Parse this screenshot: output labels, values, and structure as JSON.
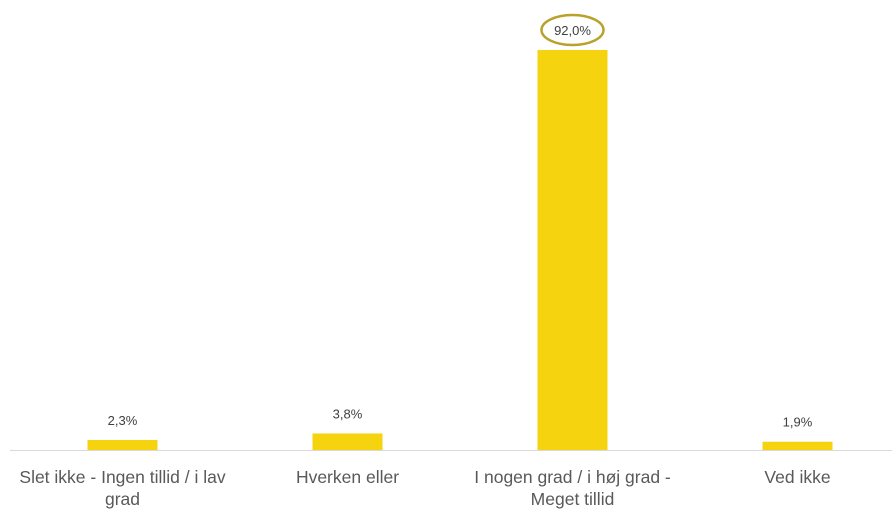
{
  "chart_data": {
    "type": "bar",
    "categories": [
      "Slet ikke - Ingen tillid / i lav grad",
      "Hverken eller",
      "I nogen grad / i høj grad - Meget tillid",
      "Ved ikke"
    ],
    "values": [
      2.3,
      3.8,
      92.0,
      1.9
    ],
    "value_labels": [
      "2,3%",
      "3,8%",
      "92,0%",
      "1,9%"
    ],
    "color": "#f5d40f"
  }
}
